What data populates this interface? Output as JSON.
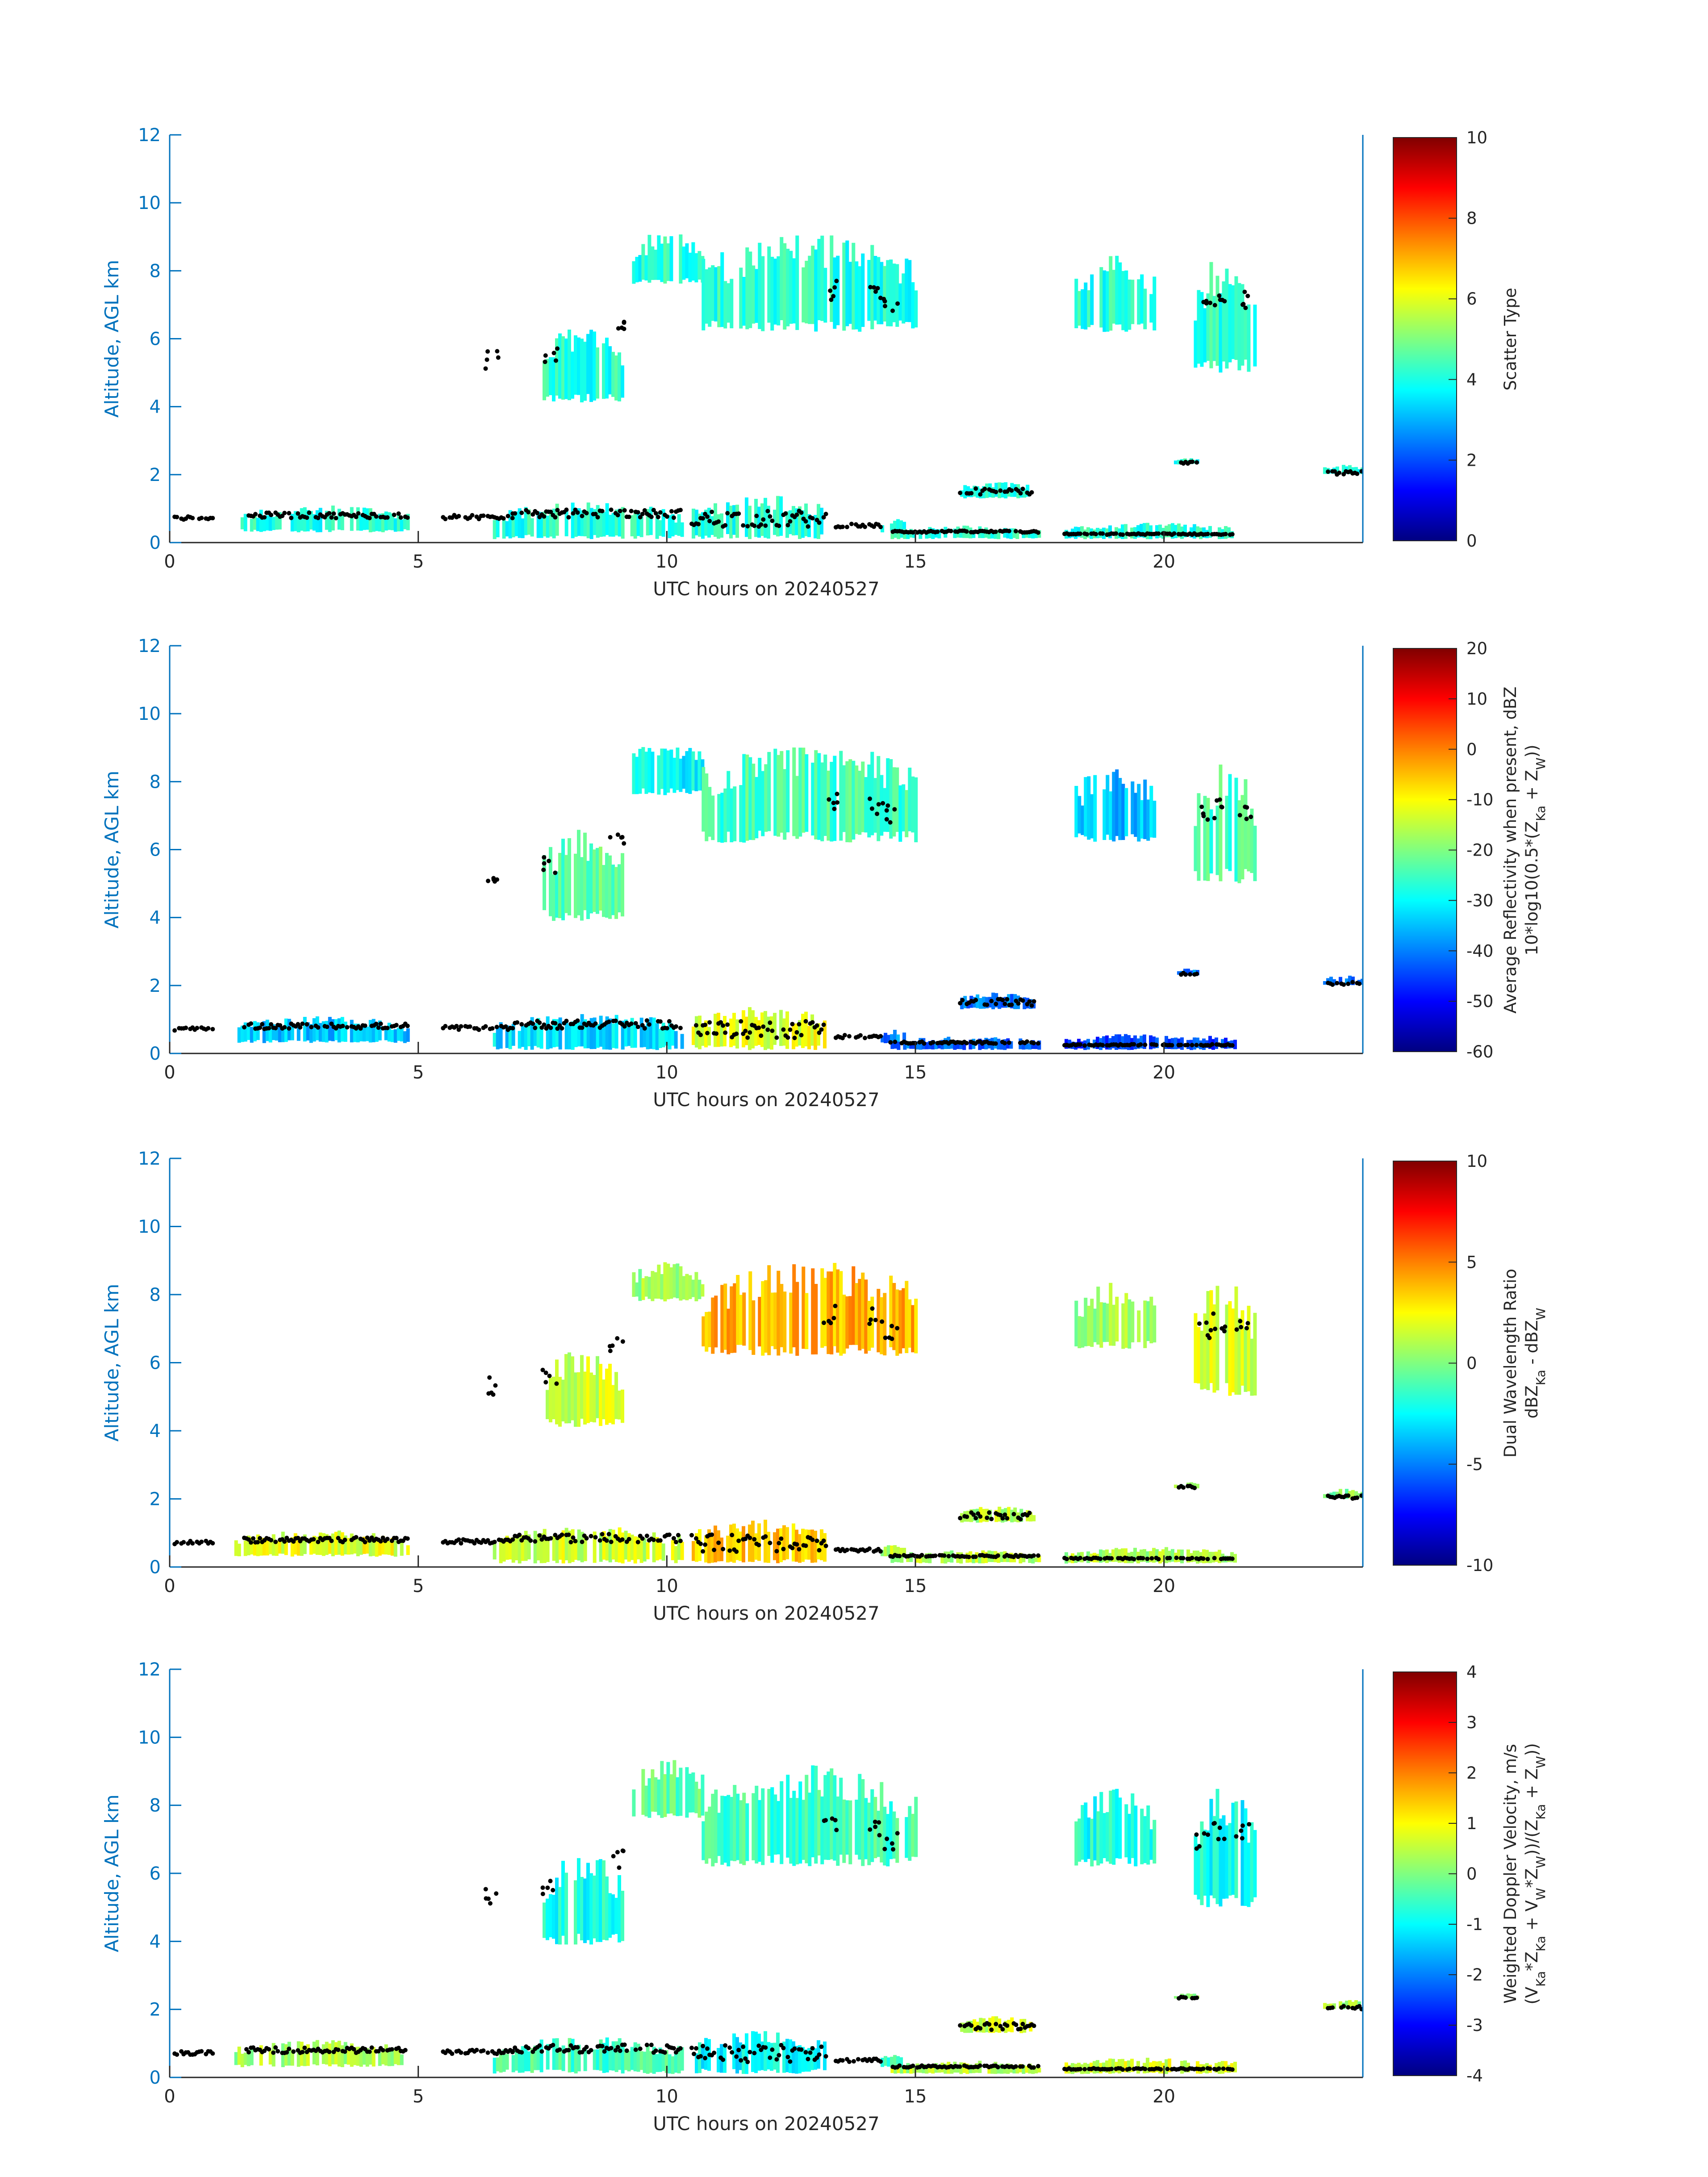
{
  "colors": {
    "axis_blue": "#0072bd",
    "text_dark": "#262626",
    "echo_black": "#000000"
  },
  "chart_data": [
    {
      "type": "heatmap",
      "xlabel": "UTC hours on 20240527",
      "ylabel": "Altitude, AGL km",
      "xlim": [
        0,
        24
      ],
      "ylim": [
        0,
        12
      ],
      "xticks": [
        "0",
        "5",
        "10",
        "15",
        "20"
      ],
      "yticks": [
        "0",
        "2",
        "4",
        "6",
        "8",
        "10",
        "12"
      ],
      "colorbar": {
        "label": [
          "Scatter Type"
        ],
        "clim": [
          0,
          10
        ],
        "ticks": [
          "0",
          "2",
          "4",
          "6",
          "8",
          "10"
        ]
      },
      "cloud_regions": [
        {
          "t": [
            7.5,
            9.1
          ],
          "z": [
            4.1,
            6.5
          ],
          "value": 4.1
        },
        {
          "t": [
            9.3,
            10.7
          ],
          "z": [
            7.6,
            9.2
          ],
          "value": 4.1
        },
        {
          "t": [
            10.7,
            15.0
          ],
          "z": [
            6.2,
            9.1
          ],
          "value": 4.1
        },
        {
          "t": [
            18.2,
            19.8
          ],
          "z": [
            6.2,
            8.5
          ],
          "value": 4.1
        },
        {
          "t": [
            20.6,
            21.8
          ],
          "z": [
            5.0,
            8.5
          ],
          "value": 4.1
        },
        {
          "t": [
            1.3,
            4.8
          ],
          "z": [
            0.3,
            1.1
          ],
          "value": 4.1
        },
        {
          "t": [
            6.5,
            10.3
          ],
          "z": [
            0.1,
            1.2
          ],
          "value": 4.1
        },
        {
          "t": [
            10.5,
            13.2
          ],
          "z": [
            0.1,
            1.4
          ],
          "value": 4.1
        },
        {
          "t": [
            14.3,
            14.8
          ],
          "z": [
            0.3,
            0.7
          ],
          "value": 4.1
        },
        {
          "t": [
            14.5,
            17.5
          ],
          "z": [
            0.1,
            0.5
          ],
          "value": 4.1
        },
        {
          "t": [
            15.9,
            17.4
          ],
          "z": [
            1.3,
            1.8
          ],
          "value": 4.1
        },
        {
          "t": [
            18.0,
            21.4
          ],
          "z": [
            0.1,
            0.6
          ],
          "value": 4.1
        },
        {
          "t": [
            20.2,
            20.7
          ],
          "z": [
            2.3,
            2.5
          ],
          "value": 4.1
        },
        {
          "t": [
            23.2,
            24.0
          ],
          "z": [
            2.0,
            2.3
          ],
          "value": 4.1
        }
      ]
    },
    {
      "type": "heatmap",
      "xlabel": "UTC hours on 20240527",
      "ylabel": "Altitude, AGL km",
      "xlim": [
        0,
        24
      ],
      "ylim": [
        0,
        12
      ],
      "xticks": [
        "0",
        "5",
        "10",
        "15",
        "20"
      ],
      "yticks": [
        "0",
        "2",
        "4",
        "6",
        "8",
        "10",
        "12"
      ],
      "colorbar": {
        "label": [
          "Average Reflectivity when present, dBZ",
          "10*log10(0.5*(Z_Ka + Z_W))"
        ],
        "clim": [
          -60,
          20
        ],
        "ticks": [
          "-60",
          "-50",
          "-40",
          "-30",
          "-20",
          "-10",
          "0",
          "10",
          "20"
        ]
      },
      "cloud_regions": [
        {
          "t": [
            7.5,
            9.1
          ],
          "z": [
            3.9,
            6.6
          ],
          "value": -22
        },
        {
          "t": [
            9.3,
            10.7
          ],
          "z": [
            7.6,
            9.3
          ],
          "value": -30
        },
        {
          "t": [
            10.7,
            15.0
          ],
          "z": [
            6.2,
            9.2
          ],
          "value": -25
        },
        {
          "t": [
            18.2,
            19.8
          ],
          "z": [
            6.2,
            8.5
          ],
          "value": -35
        },
        {
          "t": [
            20.6,
            21.8
          ],
          "z": [
            5.0,
            8.6
          ],
          "value": -25
        },
        {
          "t": [
            1.3,
            4.8
          ],
          "z": [
            0.3,
            1.1
          ],
          "value": -35
        },
        {
          "t": [
            6.5,
            10.3
          ],
          "z": [
            0.1,
            1.2
          ],
          "value": -32
        },
        {
          "t": [
            10.5,
            13.2
          ],
          "z": [
            0.1,
            1.4
          ],
          "value": -12
        },
        {
          "t": [
            14.3,
            14.8
          ],
          "z": [
            0.3,
            0.7
          ],
          "value": -40
        },
        {
          "t": [
            14.5,
            17.5
          ],
          "z": [
            0.1,
            0.5
          ],
          "value": -42
        },
        {
          "t": [
            15.9,
            17.4
          ],
          "z": [
            1.3,
            1.8
          ],
          "value": -40
        },
        {
          "t": [
            18.0,
            21.4
          ],
          "z": [
            0.1,
            0.6
          ],
          "value": -45
        },
        {
          "t": [
            20.2,
            20.7
          ],
          "z": [
            2.3,
            2.5
          ],
          "value": -40
        },
        {
          "t": [
            23.2,
            24.0
          ],
          "z": [
            2.0,
            2.3
          ],
          "value": -40
        }
      ]
    },
    {
      "type": "heatmap",
      "xlabel": "UTC hours on 20240527",
      "ylabel": "Altitude, AGL km",
      "xlim": [
        0,
        24
      ],
      "ylim": [
        0,
        12
      ],
      "xticks": [
        "0",
        "5",
        "10",
        "15",
        "20"
      ],
      "yticks": [
        "0",
        "2",
        "4",
        "6",
        "8",
        "10",
        "12"
      ],
      "colorbar": {
        "label": [
          "Dual Wavelength Ratio",
          "dBZ_Ka - dBZ_W"
        ],
        "clim": [
          -10,
          10
        ],
        "ticks": [
          "-10",
          "-5",
          "0",
          "5",
          "10"
        ]
      },
      "cloud_regions": [
        {
          "t": [
            7.5,
            9.1
          ],
          "z": [
            4.1,
            6.4
          ],
          "value": 1.5
        },
        {
          "t": [
            9.3,
            10.7
          ],
          "z": [
            7.8,
            9.0
          ],
          "value": 0.5
        },
        {
          "t": [
            10.7,
            15.0
          ],
          "z": [
            6.2,
            9.0
          ],
          "value": 4.0
        },
        {
          "t": [
            18.2,
            19.8
          ],
          "z": [
            6.4,
            8.4
          ],
          "value": 0.5
        },
        {
          "t": [
            20.6,
            21.8
          ],
          "z": [
            5.0,
            8.5
          ],
          "value": 1.5
        },
        {
          "t": [
            1.3,
            4.8
          ],
          "z": [
            0.3,
            1.1
          ],
          "value": 2.0
        },
        {
          "t": [
            6.5,
            10.3
          ],
          "z": [
            0.1,
            1.2
          ],
          "value": 1.5
        },
        {
          "t": [
            10.5,
            13.2
          ],
          "z": [
            0.1,
            1.4
          ],
          "value": 3.5
        },
        {
          "t": [
            14.3,
            14.8
          ],
          "z": [
            0.3,
            0.7
          ],
          "value": 1.0
        },
        {
          "t": [
            14.5,
            17.5
          ],
          "z": [
            0.1,
            0.5
          ],
          "value": 1.0
        },
        {
          "t": [
            15.9,
            17.4
          ],
          "z": [
            1.3,
            1.8
          ],
          "value": 1.0
        },
        {
          "t": [
            18.0,
            21.4
          ],
          "z": [
            0.1,
            0.6
          ],
          "value": 1.0
        },
        {
          "t": [
            20.2,
            20.7
          ],
          "z": [
            2.3,
            2.5
          ],
          "value": 0.0
        },
        {
          "t": [
            23.2,
            24.0
          ],
          "z": [
            2.0,
            2.3
          ],
          "value": 0.0
        }
      ]
    },
    {
      "type": "heatmap",
      "xlabel": "UTC hours on 20240527",
      "ylabel": "Altitude, AGL km",
      "xlim": [
        0,
        24
      ],
      "ylim": [
        0,
        12
      ],
      "xticks": [
        "0",
        "5",
        "10",
        "15",
        "20"
      ],
      "yticks": [
        "0",
        "2",
        "4",
        "6",
        "8",
        "10",
        "12"
      ],
      "colorbar": {
        "label": [
          "Weighted Doppler Velocity, m/s",
          "(V_Ka*Z_Ka + V_W*Z_W))/(Z_Ka + Z_W))"
        ],
        "clim": [
          -4,
          4
        ],
        "ticks": [
          "-4",
          "-3",
          "-2",
          "-1",
          "0",
          "1",
          "2",
          "3",
          "4"
        ]
      },
      "cloud_regions": [
        {
          "t": [
            7.5,
            9.1
          ],
          "z": [
            3.9,
            6.6
          ],
          "value": -0.8
        },
        {
          "t": [
            9.3,
            10.7
          ],
          "z": [
            7.6,
            9.4
          ],
          "value": -0.3
        },
        {
          "t": [
            10.7,
            15.0
          ],
          "z": [
            6.2,
            9.2
          ],
          "value": -0.5
        },
        {
          "t": [
            18.2,
            19.8
          ],
          "z": [
            6.2,
            8.5
          ],
          "value": -0.8
        },
        {
          "t": [
            20.6,
            21.8
          ],
          "z": [
            5.0,
            8.6
          ],
          "value": -0.9
        },
        {
          "t": [
            1.3,
            4.8
          ],
          "z": [
            0.3,
            1.1
          ],
          "value": 0.3
        },
        {
          "t": [
            6.5,
            10.3
          ],
          "z": [
            0.1,
            1.2
          ],
          "value": -0.4
        },
        {
          "t": [
            10.5,
            13.2
          ],
          "z": [
            0.1,
            1.4
          ],
          "value": -1.0
        },
        {
          "t": [
            14.3,
            14.8
          ],
          "z": [
            0.3,
            0.7
          ],
          "value": -0.5
        },
        {
          "t": [
            14.5,
            17.5
          ],
          "z": [
            0.1,
            0.5
          ],
          "value": 0.4
        },
        {
          "t": [
            15.9,
            17.4
          ],
          "z": [
            1.3,
            1.8
          ],
          "value": 0.6
        },
        {
          "t": [
            18.0,
            21.4
          ],
          "z": [
            0.1,
            0.6
          ],
          "value": 0.7
        },
        {
          "t": [
            20.2,
            20.7
          ],
          "z": [
            2.3,
            2.5
          ],
          "value": 0.0
        },
        {
          "t": [
            23.2,
            24.0
          ],
          "z": [
            2.0,
            2.3
          ],
          "value": 0.2
        }
      ]
    }
  ]
}
